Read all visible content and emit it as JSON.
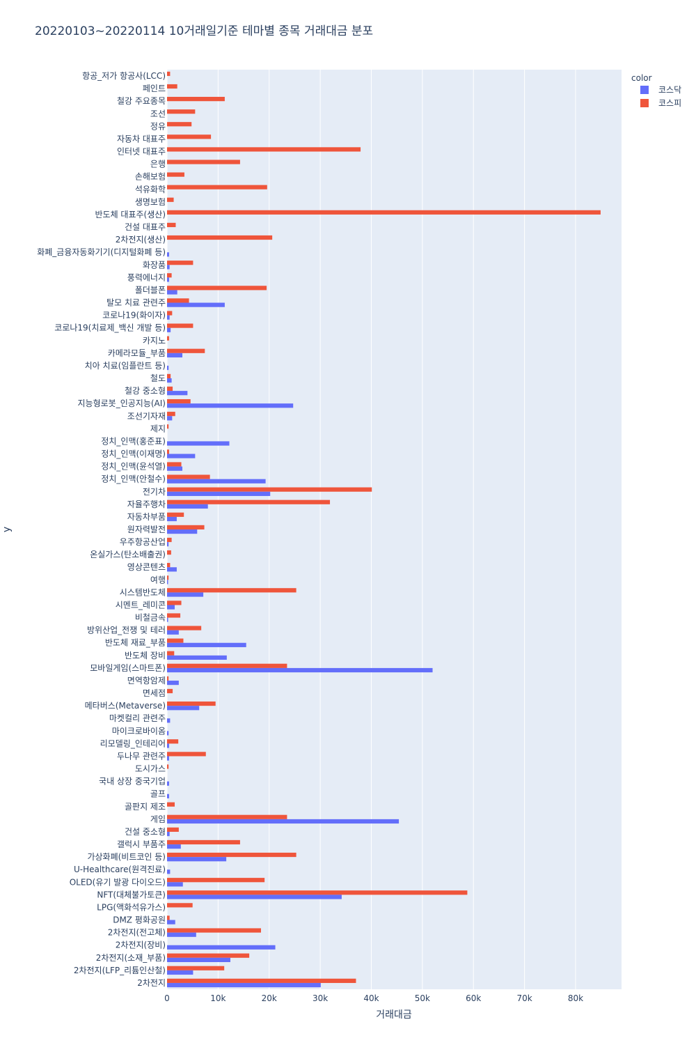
{
  "chart_data": {
    "type": "bar",
    "orientation": "horizontal",
    "barmode": "group",
    "title": "20220103~20220114 10거래일기준 테마별 종목 거래대금 분포",
    "xlabel": "거래대금",
    "ylabel": "y",
    "xlim": [
      0,
      89000
    ],
    "x_ticks": [
      0,
      10000,
      20000,
      30000,
      40000,
      50000,
      60000,
      70000,
      80000
    ],
    "x_tick_labels": [
      "0",
      "10k",
      "20k",
      "30k",
      "40k",
      "50k",
      "60k",
      "70k",
      "80k"
    ],
    "grid": true,
    "legend": {
      "title": "color",
      "position": "top-right"
    },
    "categories": [
      "항공_저가 항공사(LCC)",
      "페인트",
      "철강 주요종목",
      "조선",
      "정유",
      "자동차 대표주",
      "인터넷 대표주",
      "은행",
      "손해보험",
      "석유화학",
      "생명보험",
      "반도체 대표주(생산)",
      "건설 대표주",
      "2차전지(생산)",
      "화폐_금융자동화기기(디지털화폐 등)",
      "화장품",
      "풍력에너지",
      "폴더블폰",
      "탈모 치료 관련주",
      "코로나19(화이자)",
      "코로나19(치료제_백신 개발 등)",
      "카지노",
      "카메라모듈_부품",
      "치아 치료(임플란트 등)",
      "철도",
      "철강 중소형",
      "지능형로봇_인공지능(AI)",
      "조선기자재",
      "제지",
      "정치_인맥(홍준표)",
      "정치_인맥(이재명)",
      "정치_인맥(윤석열)",
      "정치_인맥(안철수)",
      "전기차",
      "자율주행차",
      "자동차부품",
      "원자력발전",
      "우주항공산업",
      "온실가스(탄소배출권)",
      "영상콘텐츠",
      "여행",
      "시스템반도체",
      "시멘트_레미콘",
      "비철금속",
      "방위산업_전쟁 및 테러",
      "반도체 재료_부품",
      "반도체 장비",
      "모바일게임(스마트폰)",
      "면역항암제",
      "면세점",
      "메타버스(Metaverse)",
      "마켓컬리 관련주",
      "마이크로바이옴",
      "리모델링_인테리어",
      "두나무 관련주",
      "도시가스",
      "국내 상장 중국기업",
      "골프",
      "골판지 제조",
      "게임",
      "건설 중소형",
      "갤럭시 부품주",
      "가상화폐(비트코인 등)",
      "U-Healthcare(원격진료)",
      "OLED(유기 발광 다이오드)",
      "NFT(대체불가토큰)",
      "LPG(액화석유가스)",
      "DMZ 평화공원",
      "2차전지(전고체)",
      "2차전지(장비)",
      "2차전지(소재_부품)",
      "2차전지(LFP_리튬인산철)",
      "2차전지"
    ],
    "series": [
      {
        "name": "코스닥",
        "color": "#636efa",
        "values": [
          0,
          0,
          0,
          0,
          0,
          0,
          0,
          0,
          0,
          0,
          0,
          0,
          0,
          0,
          400,
          500,
          400,
          2000,
          11300,
          500,
          700,
          0,
          3000,
          300,
          900,
          4000,
          24700,
          1000,
          0,
          12200,
          5500,
          3000,
          19300,
          20200,
          8000,
          1900,
          5900,
          300,
          0,
          1900,
          200,
          7100,
          1500,
          200,
          2300,
          15500,
          11700,
          52000,
          2300,
          0,
          6300,
          600,
          300,
          400,
          400,
          0,
          400,
          400,
          0,
          45400,
          500,
          2700,
          11600,
          600,
          3100,
          34200,
          0,
          1600,
          5700,
          21200,
          12400,
          5100,
          30100
        ]
      },
      {
        "name": "코스피",
        "color": "#ef553b",
        "values": [
          600,
          2000,
          11300,
          5500,
          4800,
          8600,
          37900,
          14300,
          3400,
          19600,
          1300,
          84900,
          1700,
          20600,
          0,
          5100,
          900,
          19500,
          4300,
          1000,
          5100,
          400,
          7400,
          0,
          700,
          1100,
          4600,
          1600,
          300,
          0,
          400,
          2800,
          8400,
          40100,
          31900,
          3300,
          7300,
          900,
          800,
          600,
          300,
          25300,
          2800,
          2600,
          6700,
          3200,
          1400,
          23500,
          300,
          1100,
          9500,
          0,
          0,
          2200,
          7600,
          300,
          0,
          0,
          1500,
          23500,
          2300,
          14300,
          25300,
          0,
          19100,
          58800,
          5000,
          500,
          18400,
          0,
          16100,
          11200,
          37000
        ]
      }
    ]
  }
}
